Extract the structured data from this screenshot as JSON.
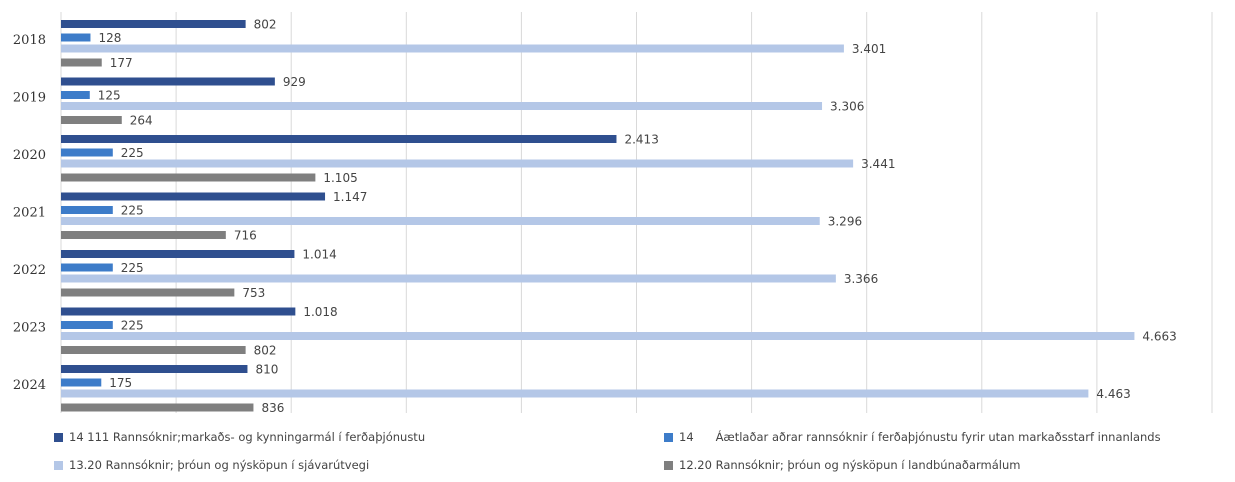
{
  "chart_data": {
    "type": "bar",
    "orientation": "horizontal",
    "categories": [
      "2018",
      "2019",
      "2020",
      "2021",
      "2022",
      "2023",
      "2024"
    ],
    "series": [
      {
        "name": "14 111 Rannsóknir;markaðs- og kynningarmál í ferðaþjónustu",
        "color": "#2f4f8f",
        "values": [
          802,
          929,
          2413,
          1147,
          1014,
          1018,
          810
        ],
        "labels": [
          "802",
          "929",
          "2.413",
          "1.147",
          "1.014",
          "1.018",
          "810"
        ]
      },
      {
        "name": "14      Áætlaðar aðrar rannsóknir í ferðaþjónustu fyrir utan markaðsstarf innanlands",
        "color": "#3d7cc9",
        "values": [
          128,
          125,
          225,
          225,
          225,
          225,
          175
        ],
        "labels": [
          "128",
          "125",
          "225",
          "225",
          "225",
          "225",
          "175"
        ]
      },
      {
        "name": "13.20 Rannsóknir; þróun og nýsköpun í sjávarútvegi",
        "color": "#b4c7e7",
        "values": [
          3401,
          3306,
          3441,
          3296,
          3366,
          4663,
          4463
        ],
        "labels": [
          "3.401",
          "3.306",
          "3.441",
          "3.296",
          "3.366",
          "4.663",
          "4.463"
        ]
      },
      {
        "name": "12.20 Rannsóknir; þróun og nýsköpun í landbúnaðarmálum",
        "color": "#7f7f7f",
        "values": [
          177,
          264,
          1105,
          716,
          753,
          802,
          836
        ],
        "labels": [
          "177",
          "264",
          "1.105",
          "716",
          "753",
          "802",
          "836"
        ]
      }
    ],
    "xlim": [
      0,
      5000
    ],
    "grid": true,
    "legend_position": "bottom"
  },
  "legend_layout": [
    {
      "series": 0,
      "col": 0,
      "row": 0
    },
    {
      "series": 1,
      "col": 1,
      "row": 0
    },
    {
      "series": 2,
      "col": 0,
      "row": 1
    },
    {
      "series": 3,
      "col": 1,
      "row": 1
    }
  ]
}
